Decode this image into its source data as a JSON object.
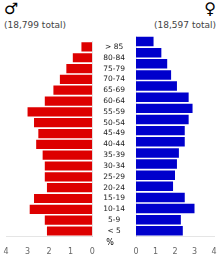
{
  "chart_data": {
    "type": "bar",
    "orientation": "horizontal",
    "categories": [
      "< 5",
      "5-9",
      "10-14",
      "15-19",
      "20-24",
      "25-29",
      "30-34",
      "35-39",
      "40-44",
      "45-49",
      "50-54",
      "55-59",
      "60-64",
      "65-69",
      "70-74",
      "75-79",
      "80-84",
      "> 85"
    ],
    "series": [
      {
        "name": "♂",
        "color": "#dd0000",
        "values": [
          2.1,
          2.2,
          2.9,
          2.7,
          2.1,
          2.2,
          2.2,
          2.3,
          2.6,
          2.5,
          2.7,
          3.0,
          2.2,
          1.8,
          1.5,
          1.2,
          0.9,
          0.5
        ]
      },
      {
        "name": "♀",
        "color": "#0000cc",
        "values": [
          2.4,
          2.3,
          3.0,
          2.5,
          1.9,
          2.0,
          2.1,
          2.2,
          2.5,
          2.5,
          2.7,
          2.9,
          2.7,
          2.1,
          1.8,
          1.6,
          1.3,
          0.9
        ]
      }
    ],
    "annotations": [
      "(18,799 total)",
      "(18,597 total)"
    ],
    "xlabel": "%",
    "xlim": [
      0,
      4.0
    ],
    "xticks": [
      0,
      1,
      2,
      3,
      4
    ],
    "grid": false
  }
}
